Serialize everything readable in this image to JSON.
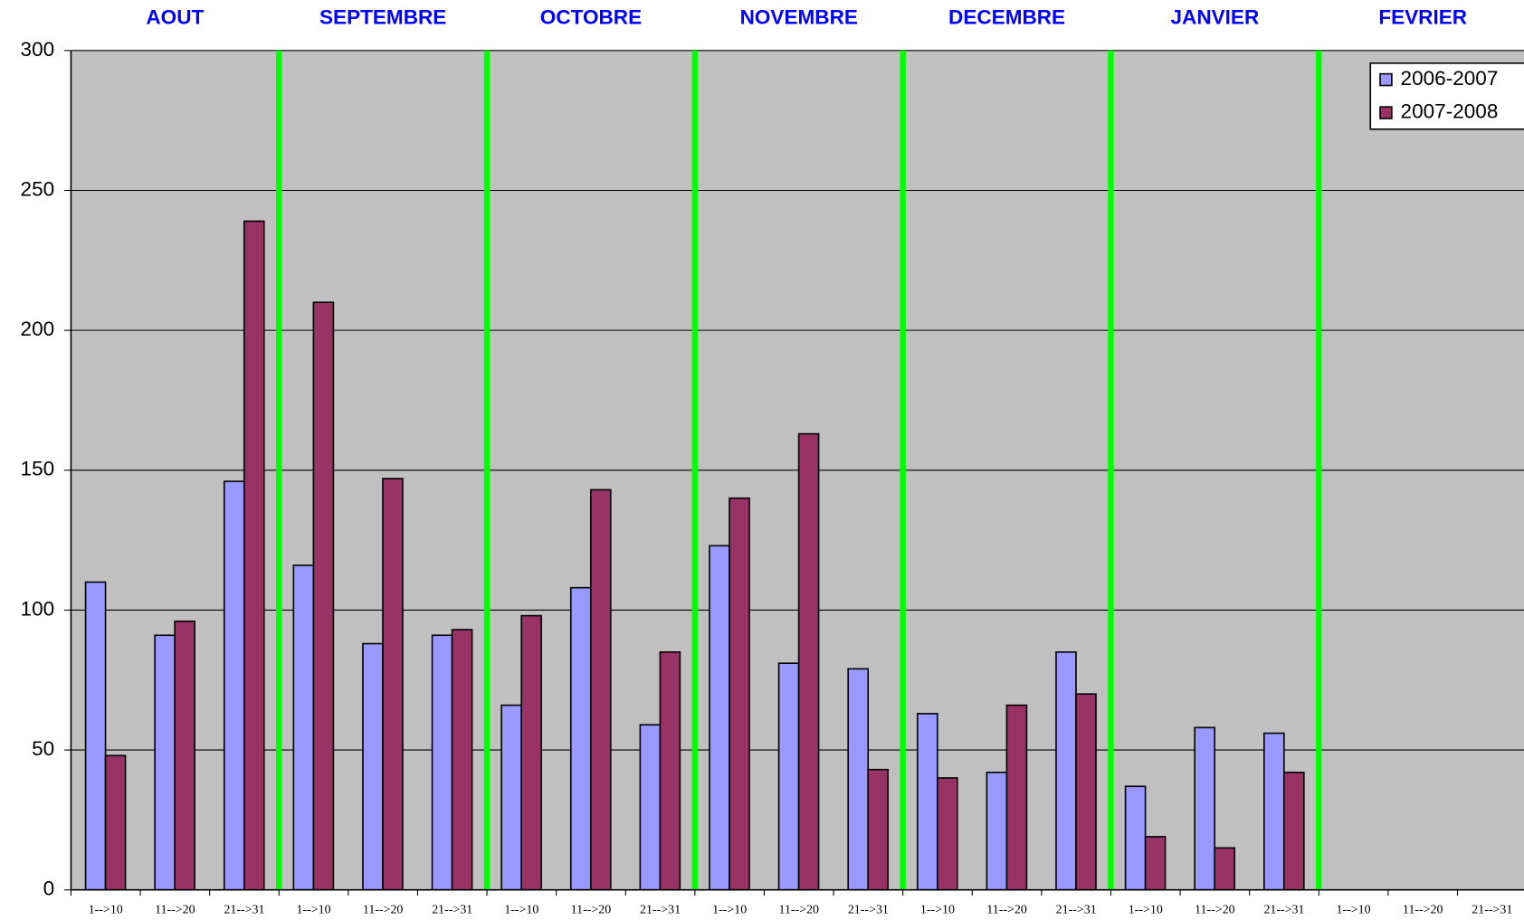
{
  "chart_data": {
    "type": "bar",
    "months": [
      "AOUT",
      "SEPTEMBRE",
      "OCTOBRE",
      "NOVEMBRE",
      "DECEMBRE",
      "JANVIER",
      "FEVRIER"
    ],
    "categories": [
      "1-->10",
      "11-->20",
      "21-->31",
      "1-->10",
      "11-->20",
      "21-->31",
      "1-->10",
      "11-->20",
      "21-->31",
      "1-->10",
      "11-->20",
      "21-->31",
      "1-->10",
      "11-->20",
      "21-->31",
      "1-->10",
      "11-->20",
      "21-->31",
      "1-->10",
      "11-->20",
      "21-->31"
    ],
    "series": [
      {
        "name": "2006-2007",
        "color": "#9999ff",
        "values": [
          110,
          91,
          146,
          116,
          88,
          91,
          66,
          108,
          59,
          123,
          81,
          79,
          63,
          42,
          85,
          37,
          58,
          56,
          null,
          null,
          null
        ]
      },
      {
        "name": "2007-2008",
        "color": "#993366",
        "values": [
          48,
          96,
          239,
          210,
          147,
          93,
          98,
          143,
          85,
          140,
          163,
          43,
          40,
          66,
          70,
          19,
          15,
          42,
          null,
          null,
          null
        ]
      }
    ],
    "ylim": [
      0,
      300
    ],
    "yticks": [
      0,
      50,
      100,
      150,
      200,
      250,
      300
    ],
    "grid": true,
    "legend": "top-right",
    "separator_color": "#00ff00",
    "plot_background": "#c0c0c0"
  }
}
